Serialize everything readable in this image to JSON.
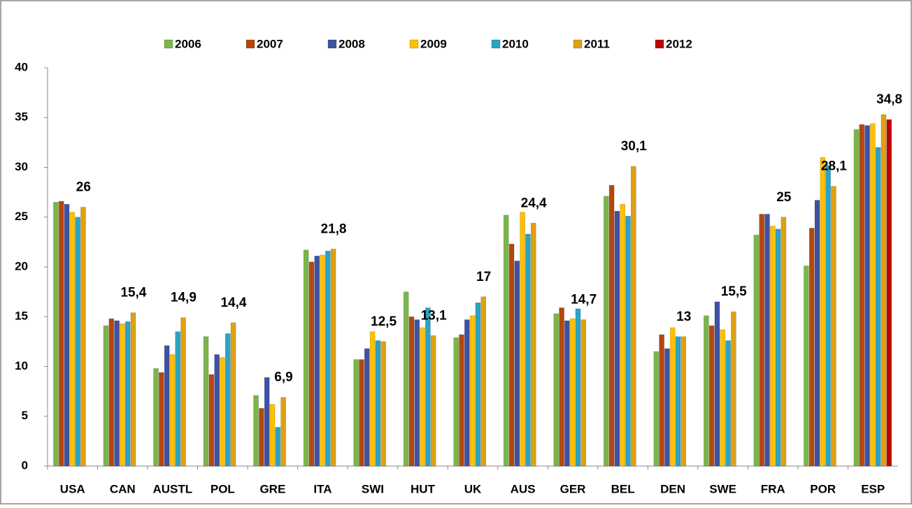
{
  "chart_data": {
    "type": "bar",
    "categories": [
      "USA",
      "CAN",
      "AUSTL",
      "POL",
      "GRE",
      "ITA",
      "SWI",
      "HUT",
      "UK",
      "AUS",
      "GER",
      "BEL",
      "DEN",
      "SWE",
      "FRA",
      "POR",
      "ESP"
    ],
    "series": [
      {
        "name": "2006",
        "color": "#7ab648",
        "values": [
          26.5,
          14.1,
          9.8,
          13.0,
          7.1,
          21.7,
          10.7,
          17.5,
          12.9,
          25.2,
          15.3,
          27.1,
          11.5,
          15.1,
          23.2,
          20.1,
          33.8
        ]
      },
      {
        "name": "2007",
        "color": "#b5470e",
        "values": [
          26.6,
          14.8,
          9.4,
          9.2,
          5.8,
          20.5,
          10.7,
          15.0,
          13.2,
          22.3,
          15.9,
          28.2,
          13.2,
          14.1,
          25.3,
          23.9,
          34.3
        ]
      },
      {
        "name": "2008",
        "color": "#3f51a3",
        "values": [
          26.3,
          14.6,
          12.1,
          11.2,
          8.9,
          21.1,
          11.8,
          14.7,
          14.7,
          20.6,
          14.6,
          25.6,
          11.8,
          16.5,
          25.3,
          26.7,
          34.2
        ]
      },
      {
        "name": "2009",
        "color": "#ffc000",
        "values": [
          25.5,
          14.3,
          11.2,
          10.9,
          6.2,
          21.2,
          13.5,
          13.9,
          15.1,
          25.5,
          14.8,
          26.3,
          13.9,
          13.7,
          24.1,
          31.0,
          34.4
        ]
      },
      {
        "name": "2010",
        "color": "#2aa3c4",
        "values": [
          25.0,
          14.5,
          13.5,
          13.3,
          3.9,
          21.6,
          12.6,
          15.9,
          16.4,
          23.3,
          15.8,
          25.1,
          13.0,
          12.6,
          23.8,
          30.2,
          32.0
        ]
      },
      {
        "name": "2011",
        "color": "#e0a010",
        "values": [
          26,
          15.4,
          14.9,
          14.4,
          6.9,
          21.8,
          12.5,
          13.1,
          17,
          24.4,
          14.7,
          30.1,
          13,
          15.5,
          25,
          28.1,
          35.3
        ],
        "value_labels": [
          "26",
          "15,4",
          "14,9",
          "14,4",
          "6,9",
          "21,8",
          "12,5",
          "13,1",
          "17",
          "24,4",
          "14,7",
          "30,1",
          "13",
          "15,5",
          "25",
          "28,1",
          null
        ]
      },
      {
        "name": "2012",
        "color": "#c00000",
        "values": [
          null,
          null,
          null,
          null,
          null,
          null,
          null,
          null,
          null,
          null,
          null,
          null,
          null,
          null,
          null,
          null,
          34.8
        ],
        "value_labels": [
          null,
          null,
          null,
          null,
          null,
          null,
          null,
          null,
          null,
          null,
          null,
          null,
          null,
          null,
          null,
          null,
          "34,8"
        ]
      }
    ],
    "ylim": [
      0,
      40
    ],
    "yticks": [
      0,
      5,
      10,
      15,
      20,
      25,
      30,
      35,
      40
    ],
    "grid": false,
    "legend": "top"
  }
}
